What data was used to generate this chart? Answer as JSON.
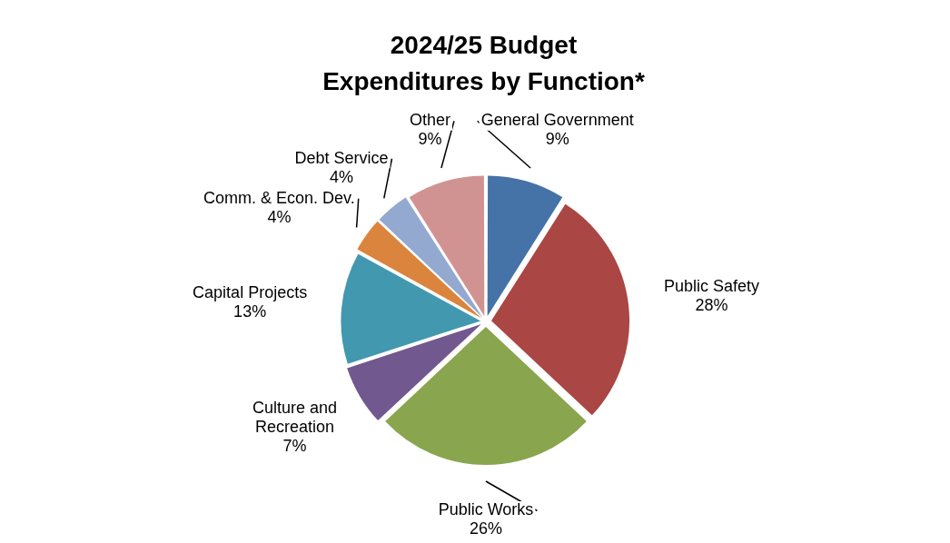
{
  "chart_data": {
    "type": "pie",
    "title": "2024/25 Budget Expenditures by Function*",
    "categories": [
      "General Government",
      "Public Safety",
      "Public Works",
      "Culture and Recreation",
      "Capital Projects",
      "Comm. & Econ. Dev.",
      "Debt Service",
      "Other"
    ],
    "values": [
      9,
      28,
      26,
      7,
      13,
      4,
      4,
      9
    ],
    "value_labels": [
      "9%",
      "28%",
      "26%",
      "7%",
      "13%",
      "4%",
      "4%",
      "9%"
    ],
    "colors": [
      "#4572a7",
      "#aa4643",
      "#89a54e",
      "#71588f",
      "#4198af",
      "#db843d",
      "#93a9cf",
      "#d19392"
    ]
  }
}
